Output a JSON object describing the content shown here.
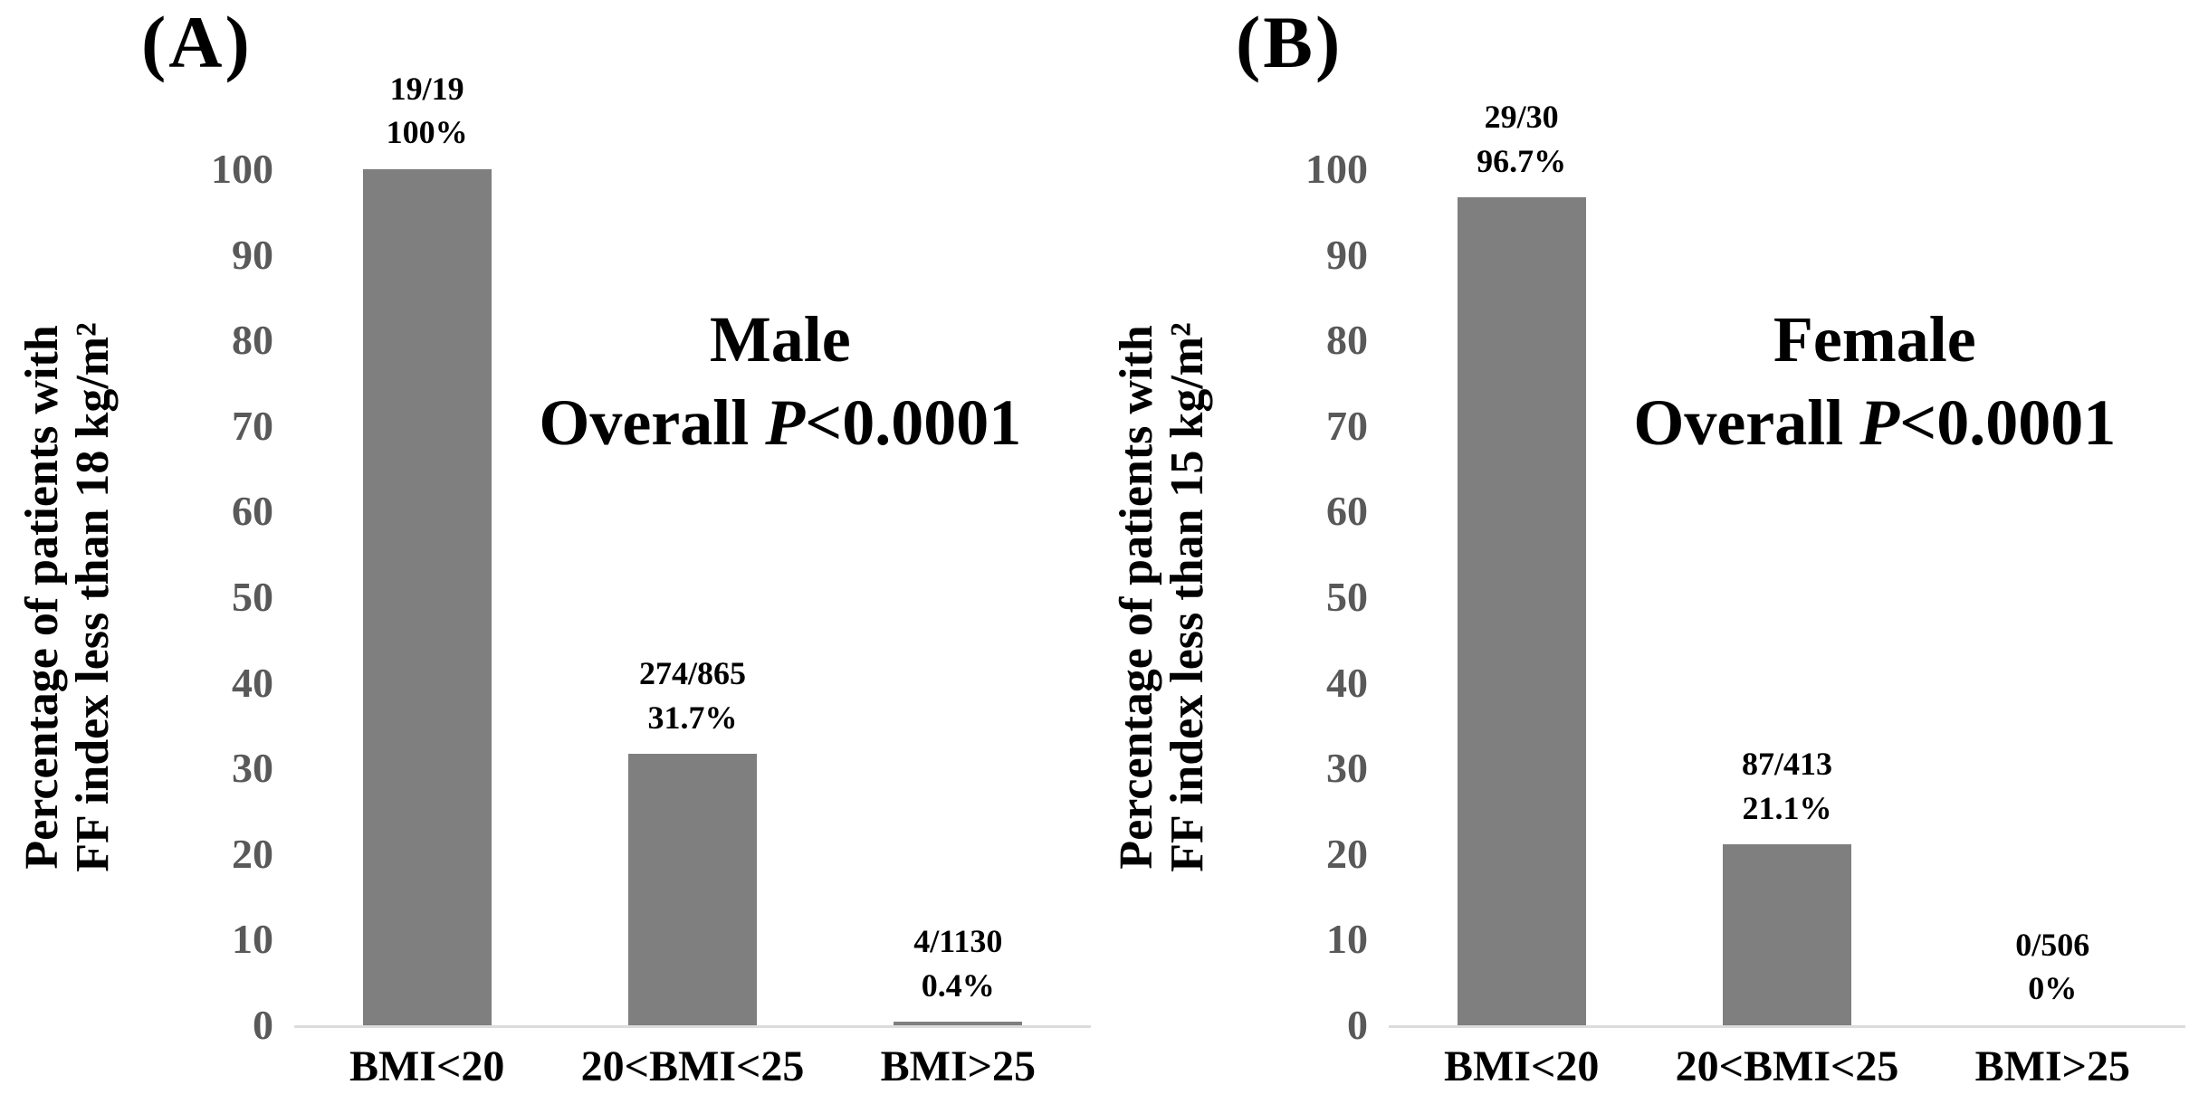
{
  "figure": {
    "background": "#ffffff",
    "panels": [
      {
        "label": "(A)",
        "y_axis_label_line1": "Percentage of patients with",
        "y_axis_label_line2": "FF index less than 18 kg/m²",
        "title_line1": "Male",
        "title_line2_prefix": "Overall ",
        "title_line2_p": "P",
        "title_line2_suffix": "<0.0001"
      },
      {
        "label": "(B)",
        "y_axis_label_line1": "Percentage of patients with",
        "y_axis_label_line2": "FF index less than 15 kg/m²",
        "title_line1": "Female",
        "title_line2_prefix": "Overall ",
        "title_line2_p": "P",
        "title_line2_suffix": "<0.0001"
      }
    ]
  },
  "chart_data": [
    {
      "type": "bar",
      "panel": "A",
      "title": "Male",
      "subtitle": "Overall P<0.0001",
      "categories": [
        "BMI<20",
        "20<BMI<25",
        "BMI>25"
      ],
      "values": [
        100,
        31.7,
        0.4
      ],
      "count_labels": [
        "19/19",
        "274/865",
        "4/1130"
      ],
      "percent_labels": [
        "100%",
        "31.7%",
        "0.4%"
      ],
      "ylabel": "Percentage of patients with FF index less than 18 kg/m²",
      "xlabel": "",
      "ylim": [
        0,
        100
      ],
      "yticks": [
        0,
        10,
        20,
        30,
        40,
        50,
        60,
        70,
        80,
        90,
        100
      ],
      "grid": false,
      "legend": false,
      "bar_color": "#7f7f7f",
      "axis_line_color": "#dcdcdc",
      "tick_label_color": "#595959"
    },
    {
      "type": "bar",
      "panel": "B",
      "title": "Female",
      "subtitle": "Overall P<0.0001",
      "categories": [
        "BMI<20",
        "20<BMI<25",
        "BMI>25"
      ],
      "values": [
        96.7,
        21.1,
        0
      ],
      "count_labels": [
        "29/30",
        "87/413",
        "0/506"
      ],
      "percent_labels": [
        "96.7%",
        "21.1%",
        "0%"
      ],
      "ylabel": "Percentage of patients with FF index less than 15 kg/m²",
      "xlabel": "",
      "ylim": [
        0,
        100
      ],
      "yticks": [
        0,
        10,
        20,
        30,
        40,
        50,
        60,
        70,
        80,
        90,
        100
      ],
      "grid": false,
      "legend": false,
      "bar_color": "#7f7f7f",
      "axis_line_color": "#dcdcdc",
      "tick_label_color": "#595959"
    }
  ]
}
